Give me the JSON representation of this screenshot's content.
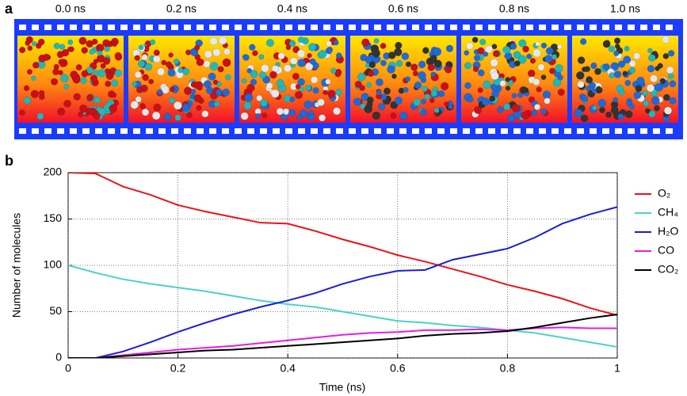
{
  "panel_a": {
    "label": "a",
    "frames": [
      "0.0 ns",
      "0.2 ns",
      "0.4 ns",
      "0.6 ns",
      "0.8 ns",
      "1.0 ns"
    ]
  },
  "chart_data": {
    "type": "line",
    "panel_label": "b",
    "x_label": "Time (ns)",
    "y_label": "Number of molecules",
    "x": [
      0,
      0.05,
      0.1,
      0.15,
      0.2,
      0.25,
      0.3,
      0.35,
      0.4,
      0.45,
      0.5,
      0.55,
      0.6,
      0.65,
      0.7,
      0.75,
      0.8,
      0.85,
      0.9,
      0.95,
      1
    ],
    "series": [
      {
        "name": "O₂",
        "color": "#e8141b",
        "values": [
          200,
          199,
          185,
          176,
          165,
          158,
          152,
          146,
          145,
          137,
          128,
          120,
          111,
          104,
          96,
          88,
          79,
          72,
          64,
          54,
          46
        ]
      },
      {
        "name": "CH₄",
        "color": "#49d3c8",
        "values": [
          100,
          92,
          85,
          80,
          76,
          72,
          67,
          62,
          58,
          55,
          50,
          45,
          40,
          38,
          35,
          33,
          30,
          27,
          22,
          17,
          12
        ]
      },
      {
        "name": "H₂O",
        "color": "#1b1bdb",
        "values": [
          0,
          0,
          7,
          17,
          28,
          38,
          47,
          55,
          62,
          70,
          80,
          88,
          94,
          95,
          106,
          112,
          118,
          130,
          145,
          155,
          163
        ]
      },
      {
        "name": "CO",
        "color": "#e61ce6",
        "values": [
          0,
          0,
          3,
          6,
          9,
          11,
          13,
          16,
          19,
          22,
          25,
          27,
          28,
          30,
          30,
          31,
          30,
          32,
          33,
          32,
          32
        ]
      },
      {
        "name": "CO₂",
        "color": "#000000",
        "values": [
          0,
          0,
          2,
          4,
          6,
          8,
          9,
          11,
          13,
          15,
          17,
          19,
          21,
          24,
          26,
          27,
          29,
          33,
          38,
          43,
          47
        ]
      }
    ],
    "xlim": [
      0,
      1
    ],
    "xticks": [
      0,
      0.2,
      0.4,
      0.6,
      0.8,
      1
    ],
    "ylim": [
      0,
      200
    ],
    "yticks": [
      0,
      50,
      100,
      150,
      200
    ],
    "grid": true
  }
}
